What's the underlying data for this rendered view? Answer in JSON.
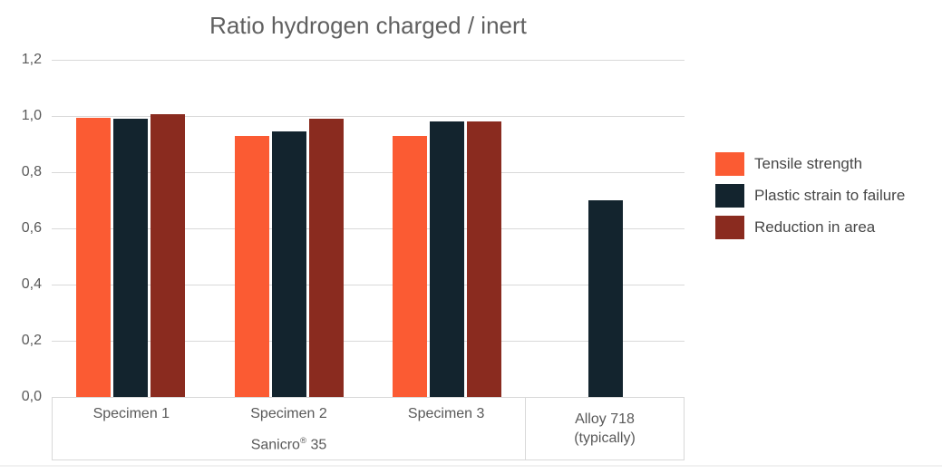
{
  "colors": {
    "background": "#FFFFFF",
    "gridline": "#D9D9D9",
    "axis_border": "#D9D9D9",
    "title_text": "#606060",
    "axis_text": "#595959",
    "legend_text": "#474747",
    "series_tensile": "#FB5B33",
    "series_plastic": "#13242E",
    "series_reduction": "#8A2B1F"
  },
  "chart_data": {
    "type": "bar",
    "title": "Ratio hydrogen charged / inert",
    "categories": [
      "Specimen 1",
      "Specimen 2",
      "Specimen 3",
      "Alloy 718 (typically)"
    ],
    "category_group_label": "Sanicro® 35",
    "category_group_span": "first three categories",
    "series": [
      {
        "name": "Tensile strength",
        "color": "#FB5B33",
        "values": [
          0.995,
          0.93,
          0.93,
          null
        ]
      },
      {
        "name": "Plastic strain to failure",
        "color": "#13242E",
        "values": [
          0.99,
          0.945,
          0.98,
          0.7
        ]
      },
      {
        "name": "Reduction in area",
        "color": "#8A2B1F",
        "values": [
          1.005,
          0.99,
          0.98,
          null
        ]
      }
    ],
    "y_axis": {
      "min": 0,
      "max": 1.2,
      "decimal_style": "comma",
      "ticks": [
        {
          "value": 0.0,
          "label": "0,0"
        },
        {
          "value": 0.2,
          "label": "0,2"
        },
        {
          "value": 0.4,
          "label": "0,4"
        },
        {
          "value": 0.6,
          "label": "0,6"
        },
        {
          "value": 0.8,
          "label": "0,8"
        },
        {
          "value": 1.0,
          "label": "1,0"
        },
        {
          "value": 1.2,
          "label": "1,2"
        }
      ]
    },
    "grid": true,
    "legend_position": "right"
  },
  "x_axis": {
    "group1": {
      "label_main": "Sanicro",
      "label_sup": "®",
      "label_rest": " 35"
    },
    "group2_line1": "Alloy 718",
    "group2_line2": "(typically)"
  }
}
